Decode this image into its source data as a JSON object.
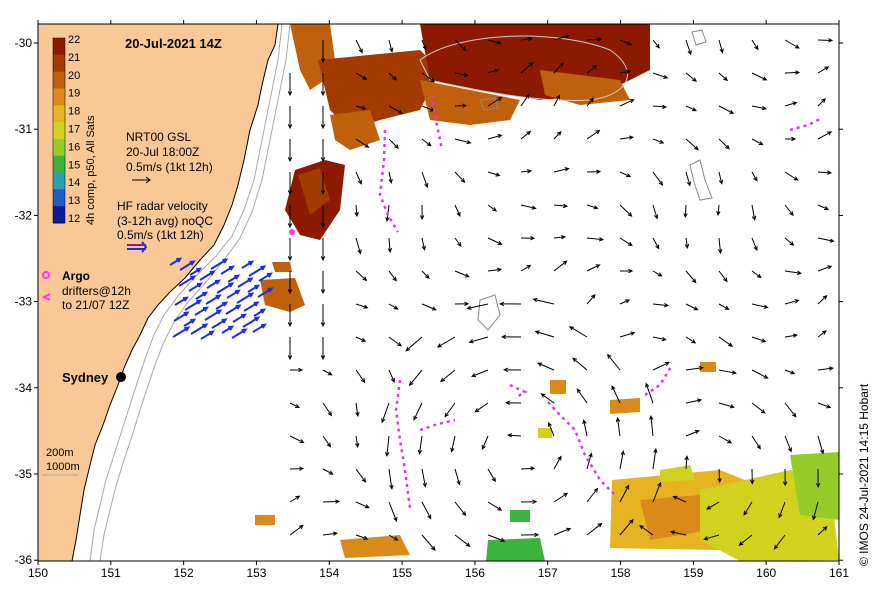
{
  "title": "20-Jul-2021 14Z",
  "colorbar": {
    "label": "4h comp, p50, All Sats",
    "ticks": [
      "22",
      "21",
      "20",
      "19",
      "18",
      "17",
      "16",
      "15",
      "14",
      "13",
      "12"
    ],
    "colors": [
      "#8b1a00",
      "#a33a00",
      "#c0600a",
      "#d98a18",
      "#e5b420",
      "#d2d21e",
      "#96cc28",
      "#3cb43c",
      "#2aa0b4",
      "#1e5cc8",
      "#0c1e96"
    ]
  },
  "legend": {
    "gsl_line1": "NRT00 GSL",
    "gsl_line2": "20-Jul 18:00Z",
    "gsl_line3": "0.5m/s (1kt 12h)",
    "hf_line1": "HF radar velocity",
    "hf_line2": "(3-12h avg) noQC",
    "hf_line3": "0.5m/s (1kt 12h)",
    "argo_label": "Argo",
    "drifters_line1": "drifters@12h",
    "drifters_line2": "to 21/07 12Z",
    "depth_200": "200m",
    "depth_1000": "1000m"
  },
  "places": {
    "sydney": "Sydney"
  },
  "axes": {
    "x_ticks": [
      "150",
      "151",
      "152",
      "153",
      "154",
      "155",
      "156",
      "157",
      "158",
      "159",
      "160",
      "161"
    ],
    "y_ticks": [
      "-30",
      "-31",
      "-32",
      "-33",
      "-34",
      "-35",
      "-36"
    ]
  },
  "credit": "© IMOS 24-Jul-2021 14:15 Hobart",
  "colors": {
    "land": "#f9c896",
    "gsl_arrow": "#000000",
    "hf_arrow": "#1a2ee6",
    "argo": "#ff33ff",
    "drifter": "#e633e6"
  }
}
